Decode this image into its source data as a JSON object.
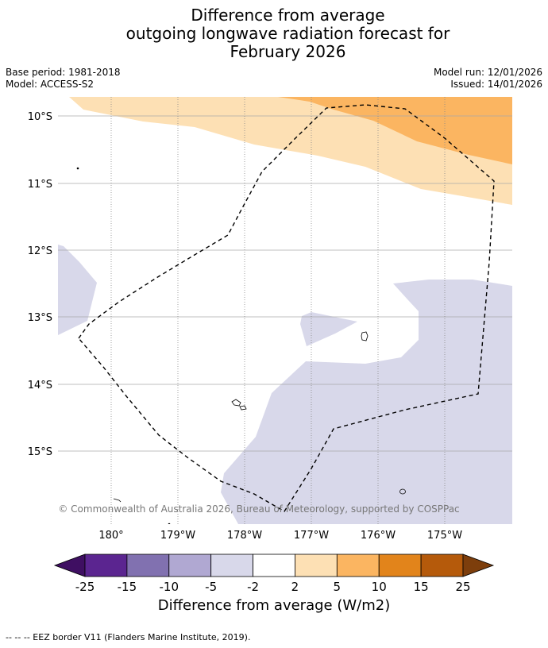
{
  "title": {
    "line1": "Difference from average",
    "line2": "outgoing longwave radiation forecast for",
    "line3": "February 2026"
  },
  "meta": {
    "base_period": "Base period: 1981-2018",
    "model": "Model: ACCESS-S2",
    "model_run": "Model run: 12/01/2026",
    "issued": "Issued: 14/01/2026"
  },
  "map": {
    "lat_labels": [
      "10°S",
      "11°S",
      "12°S",
      "13°S",
      "14°S",
      "15°S"
    ],
    "lon_labels": [
      "180°",
      "179°W",
      "178°W",
      "177°W",
      "176°W",
      "175°W"
    ],
    "copyright": "© Commonwealth of Australia 2026, Bureau of Meteorology, supported by COSPPac"
  },
  "colorbar": {
    "ticks": [
      "-25",
      "-15",
      "-10",
      "-5",
      "-2",
      "2",
      "5",
      "10",
      "15",
      "25"
    ],
    "colors": [
      "#3f0f62",
      "#5b2590",
      "#8171b0",
      "#b0a8d2",
      "#d8d8ea",
      "#ffffff",
      "#fde0b4",
      "#fbb561",
      "#e2841b",
      "#b55a0b",
      "#7d3e0c"
    ],
    "label": "Difference from average (W/m2)"
  },
  "colors": {
    "neg_light": "#d8d8ea",
    "pos_light": "#fde0b4",
    "pos_mid": "#fbb561",
    "grid": "#aaaaaa"
  },
  "footer": {
    "eez_legend": "--  --  -- EEZ border V11 (Flanders Marine Institute, 2019)."
  }
}
